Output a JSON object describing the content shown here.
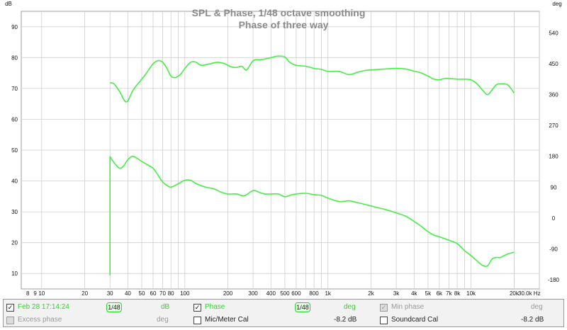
{
  "chart_data": {
    "type": "line",
    "title": "SPL & Phase, 1/48 octave smoothing",
    "subtitle": "Phase of three way",
    "xscale": "log",
    "xlim": [
      7.2,
      30000
    ],
    "ylim_left": [
      5,
      95
    ],
    "ylim_right": [
      -207,
      603
    ],
    "left_unit": "dB",
    "right_unit": "deg",
    "x_unit": "Hz",
    "grid": true,
    "left_ticks": [
      "10",
      "20",
      "30",
      "40",
      "50",
      "60",
      "70",
      "80",
      "90"
    ],
    "right_ticks": [
      "-180",
      "-90",
      "0",
      "90",
      "180",
      "270",
      "360",
      "450",
      "540"
    ],
    "x_ticks": [
      {
        "v": 8,
        "l": "8"
      },
      {
        "v": 9,
        "l": "9"
      },
      {
        "v": 10,
        "l": "10"
      },
      {
        "v": 20,
        "l": "20"
      },
      {
        "v": 30,
        "l": "30"
      },
      {
        "v": 40,
        "l": "40"
      },
      {
        "v": 50,
        "l": "50"
      },
      {
        "v": 60,
        "l": "60"
      },
      {
        "v": 70,
        "l": "70"
      },
      {
        "v": 80,
        "l": "80"
      },
      {
        "v": 100,
        "l": "100"
      },
      {
        "v": 200,
        "l": "200"
      },
      {
        "v": 300,
        "l": "300"
      },
      {
        "v": 400,
        "l": "400"
      },
      {
        "v": 500,
        "l": "500"
      },
      {
        "v": 600,
        "l": "600"
      },
      {
        "v": 800,
        "l": "800"
      },
      {
        "v": 1000,
        "l": "1k"
      },
      {
        "v": 2000,
        "l": "2k"
      },
      {
        "v": 3000,
        "l": "3k"
      },
      {
        "v": 4000,
        "l": "4k"
      },
      {
        "v": 5000,
        "l": "5k"
      },
      {
        "v": 6000,
        "l": "6k"
      },
      {
        "v": 7000,
        "l": "7k"
      },
      {
        "v": 8000,
        "l": "8k"
      },
      {
        "v": 10000,
        "l": "10k"
      },
      {
        "v": 20000,
        "l": "20k"
      },
      {
        "v": 30000,
        "l": "30.0k Hz"
      }
    ],
    "series": [
      {
        "name": "Feb 28 17:14:24",
        "color": "#44ee44",
        "axis": "left",
        "x": [
          30,
          32,
          35,
          38,
          40,
          43,
          46,
          50,
          55,
          60,
          65,
          70,
          75,
          80,
          85,
          90,
          95,
          100,
          110,
          120,
          130,
          150,
          170,
          190,
          210,
          230,
          250,
          270,
          300,
          330,
          360,
          400,
          450,
          500,
          540,
          600,
          700,
          800,
          900,
          1000,
          1200,
          1400,
          1600,
          1800,
          2000,
          2500,
          3000,
          3500,
          4000,
          4500,
          5000,
          5500,
          6000,
          6500,
          7000,
          8000,
          9000,
          10000,
          11000,
          12000,
          13000,
          14000,
          15000,
          16000,
          18000,
          20000
        ],
        "values": [
          71.8,
          71.5,
          69,
          66,
          66,
          69,
          71,
          73,
          75.5,
          78,
          79,
          78.5,
          76.5,
          74,
          73.5,
          74,
          75,
          76.5,
          78.5,
          78.5,
          77.5,
          78,
          78.5,
          78,
          77,
          76.8,
          77.2,
          76,
          79,
          79.3,
          79.5,
          80,
          80.5,
          80.2,
          78.5,
          77.5,
          77.2,
          76.5,
          76.2,
          75.5,
          75.5,
          74.5,
          75.2,
          75.8,
          76,
          76.3,
          76.5,
          76.3,
          75.6,
          75,
          74,
          73,
          72.8,
          73.2,
          73.2,
          73,
          73,
          72.8,
          71.5,
          69.5,
          68,
          69.5,
          71.2,
          71.5,
          71.2,
          68.5
        ]
      },
      {
        "name": "Phase",
        "color": "#44ee44",
        "axis": "right",
        "x": [
          30,
          31,
          33,
          35,
          37,
          40,
          43,
          46,
          50,
          55,
          60,
          65,
          70,
          75,
          80,
          90,
          100,
          110,
          120,
          140,
          160,
          180,
          200,
          230,
          260,
          300,
          330,
          360,
          400,
          450,
          500,
          550,
          600,
          700,
          800,
          900,
          1000,
          1200,
          1400,
          1600,
          1800,
          2000,
          2500,
          3000,
          3500,
          4000,
          4500,
          5000,
          5500,
          6000,
          7000,
          8000,
          9000,
          10000,
          11000,
          12000,
          13000,
          14000,
          15000,
          16000,
          18000,
          20000
        ],
        "values": [
          180,
          170,
          155,
          145,
          150,
          170,
          180,
          175,
          165,
          155,
          145,
          125,
          105,
          95,
          90,
          100,
          110,
          110,
          100,
          90,
          85,
          75,
          70,
          70,
          65,
          80,
          75,
          70,
          70,
          70,
          62,
          67,
          70,
          72,
          68,
          66,
          58,
          48,
          50,
          45,
          40,
          35,
          25,
          15,
          5,
          -10,
          -25,
          -40,
          -50,
          -55,
          -65,
          -75,
          -95,
          -110,
          -125,
          -138,
          -140,
          -120,
          -115,
          -115,
          -105,
          -100
        ]
      }
    ]
  },
  "legend": {
    "row1": [
      {
        "checked": "✓",
        "label": "Feb 28 17:14:24",
        "smoothing": "1/48",
        "unit": "dB"
      },
      {
        "checked": "✓",
        "label": "Phase",
        "smoothing": "1/48",
        "unit": "deg"
      },
      {
        "checked": "✓",
        "label": "Min phase",
        "unit": "deg"
      }
    ],
    "row2": [
      {
        "checked": "",
        "label": "Excess phase",
        "unit": "deg"
      },
      {
        "checked": "",
        "label": "Mic/Meter Cal",
        "value": "-8.2 dB"
      },
      {
        "checked": "",
        "label": "Soundcard Cal",
        "value": "-8.2 dB"
      }
    ]
  }
}
